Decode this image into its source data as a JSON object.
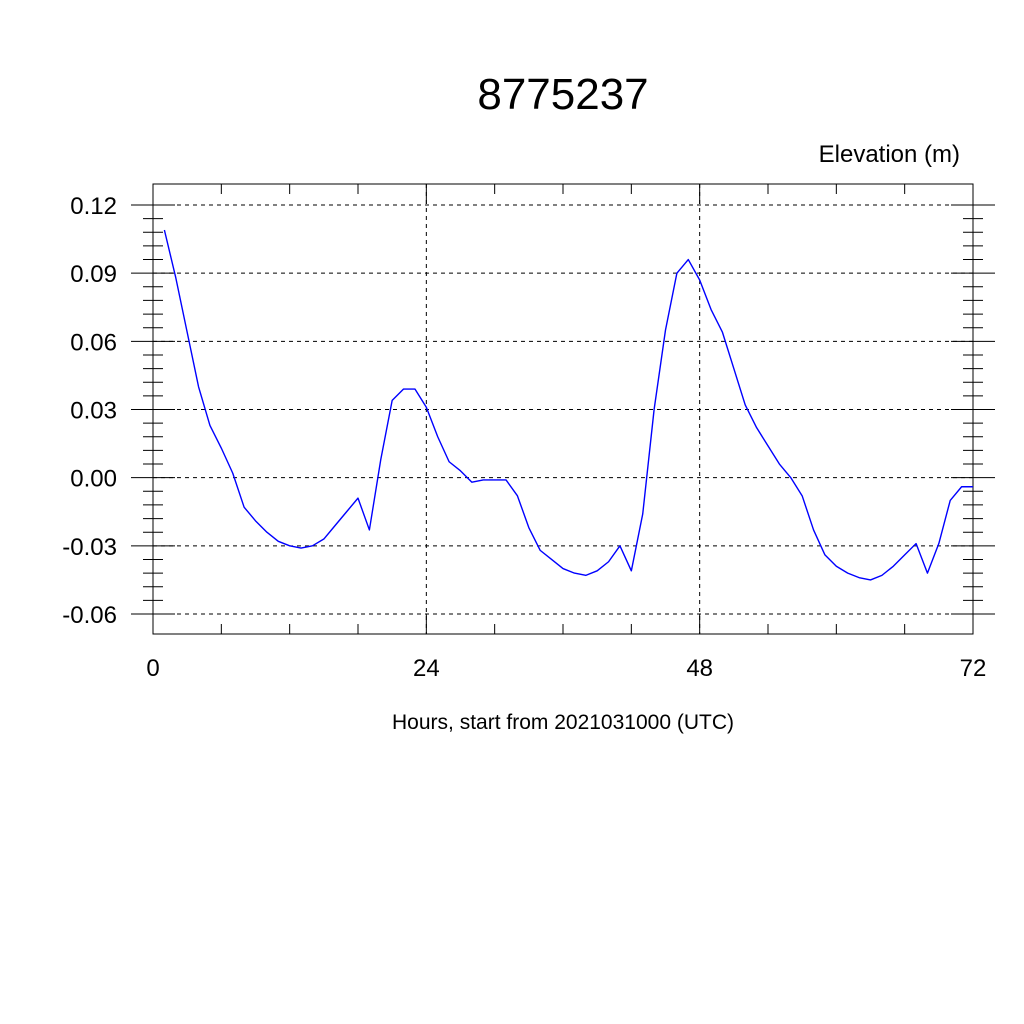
{
  "chart_data": {
    "type": "line",
    "title": "8775237",
    "unit_label": "Elevation (m)",
    "xlabel": "Hours, start from 2021031000 (UTC)",
    "ylabel": "",
    "xlim": [
      0,
      72
    ],
    "ylim": [
      -0.06,
      0.12
    ],
    "xticks": [
      0,
      24,
      48,
      72
    ],
    "xtick_labels": [
      "0",
      "24",
      "48",
      "72"
    ],
    "yticks": [
      -0.06,
      -0.03,
      0.0,
      0.03,
      0.06,
      0.09,
      0.12
    ],
    "ytick_labels": [
      "-0.06",
      "-0.03",
      "0.00",
      "0.03",
      "0.06",
      "0.09",
      "0.12"
    ],
    "grid": true,
    "line_color": "#0000ff",
    "series": [
      {
        "x": [
          1,
          2,
          3,
          4,
          5,
          6,
          7,
          8,
          9,
          10,
          11,
          12,
          13,
          14,
          15,
          16,
          17,
          18,
          19,
          20,
          21,
          22,
          23,
          24,
          25,
          26,
          27,
          28,
          29,
          30,
          31,
          32,
          33,
          34,
          35,
          36,
          37,
          38,
          39,
          40,
          41,
          42,
          43,
          44,
          45,
          46,
          47,
          48,
          49,
          50,
          51,
          52,
          53,
          54,
          55,
          56,
          57,
          58,
          59,
          60,
          61,
          62,
          63,
          64,
          65,
          66,
          67,
          68,
          69,
          70,
          71,
          72
        ],
        "y": [
          0.109,
          0.088,
          0.064,
          0.04,
          0.023,
          0.013,
          0.002,
          -0.013,
          -0.019,
          -0.024,
          -0.028,
          -0.03,
          -0.031,
          -0.03,
          -0.027,
          -0.021,
          -0.015,
          -0.009,
          -0.023,
          0.008,
          0.034,
          0.039,
          0.039,
          0.031,
          0.018,
          0.007,
          0.003,
          -0.002,
          -0.001,
          -0.001,
          -0.001,
          -0.008,
          -0.022,
          -0.032,
          -0.036,
          -0.04,
          -0.042,
          -0.043,
          -0.041,
          -0.037,
          -0.03,
          -0.041,
          -0.016,
          0.03,
          0.065,
          0.09,
          0.096,
          0.087,
          0.074,
          0.064,
          0.048,
          0.032,
          0.022,
          0.014,
          0.006,
          0.0,
          -0.008,
          -0.023,
          -0.034,
          -0.039,
          -0.042,
          -0.044,
          -0.045,
          -0.043,
          -0.039,
          -0.034,
          -0.029,
          -0.042,
          -0.029,
          -0.01,
          -0.004,
          -0.004
        ]
      }
    ]
  }
}
